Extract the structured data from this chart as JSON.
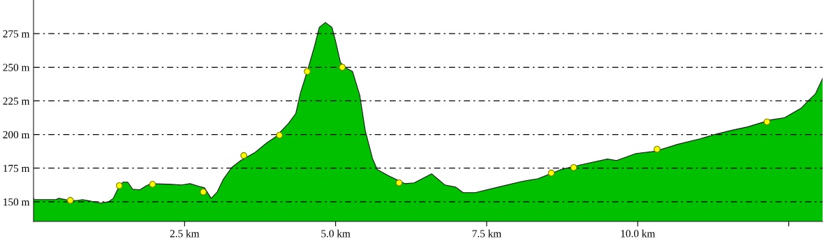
{
  "chart_data": {
    "type": "area",
    "xlim": [
      0,
      13.06
    ],
    "ylim": [
      135.4,
      300
    ],
    "xticks": [
      {
        "value": 2.5,
        "label": "2.5 km"
      },
      {
        "value": 5.0,
        "label": "5.0 km"
      },
      {
        "value": 7.5,
        "label": "7.5 km"
      },
      {
        "value": 10.0,
        "label": "10.0 km"
      },
      {
        "value": 12.5,
        "label": null
      }
    ],
    "yticks": [
      {
        "value": 150,
        "label": "150 m"
      },
      {
        "value": 175,
        "label": "175 m"
      },
      {
        "value": 200,
        "label": "200 m"
      },
      {
        "value": 225,
        "label": "225 m"
      },
      {
        "value": 250,
        "label": "250 m"
      },
      {
        "value": 275,
        "label": "275 m"
      }
    ],
    "grid": "y",
    "series": [
      {
        "color": "#00c000",
        "x": [
          0,
          0.01,
          0.37,
          0.42,
          0.6,
          0.72,
          0.81,
          0.95,
          1.1,
          1.24,
          1.32,
          1.41,
          1.48,
          1.56,
          1.64,
          1.76,
          1.87,
          1.94,
          2.28,
          2.45,
          2.59,
          2.74,
          2.83,
          2.94,
          3.04,
          3.14,
          3.28,
          3.43,
          3.66,
          3.86,
          4.01,
          4.22,
          4.34,
          4.42,
          4.53,
          4.65,
          4.73,
          4.83,
          4.94,
          5.0,
          5.08,
          5.17,
          5.28,
          5.4,
          5.49,
          5.61,
          5.69,
          5.88,
          6.15,
          6.3,
          6.59,
          6.81,
          6.99,
          7.11,
          7.31,
          7.69,
          8.08,
          8.35,
          8.73,
          9.12,
          9.5,
          9.65,
          9.97,
          10.28,
          10.66,
          11.04,
          11.27,
          11.55,
          11.82,
          12.2,
          12.43,
          12.71,
          12.82,
          12.94,
          13.06
        ],
        "values": [
          153.1,
          151.6,
          151.6,
          152.6,
          151.0,
          151.0,
          151.6,
          150.5,
          149.0,
          150.0,
          152.6,
          160.9,
          164.6,
          164.6,
          159.4,
          158.9,
          162.0,
          163.5,
          163.0,
          162.5,
          163.5,
          161.5,
          160.4,
          152.6,
          157.3,
          166.7,
          175.5,
          180.7,
          186.5,
          193.8,
          198.4,
          208.3,
          215.6,
          231.3,
          246.9,
          265.6,
          279.7,
          283.3,
          279.7,
          269.3,
          253.6,
          249.5,
          246.9,
          229.2,
          203.1,
          182.3,
          174.0,
          169.3,
          163.5,
          164.1,
          170.8,
          162.5,
          160.9,
          156.8,
          156.8,
          160.9,
          165.1,
          167.2,
          174.0,
          178.1,
          181.8,
          180.7,
          185.9,
          187.5,
          192.7,
          196.9,
          200.0,
          203.1,
          205.7,
          210.9,
          212.5,
          219.8,
          225.0,
          230.2,
          241.7
        ]
      },
      {
        "type": "scatter",
        "color": "#ffff00",
        "marker": "circle",
        "x": [
          0.61,
          1.42,
          1.97,
          2.81,
          3.48,
          4.07,
          4.53,
          5.11,
          6.05,
          8.57,
          8.94,
          10.32,
          12.14
        ],
        "values": [
          151.0,
          162.0,
          163.0,
          157.3,
          184.4,
          199.5,
          246.9,
          250.0,
          164.1,
          171.4,
          175.5,
          189.1,
          209.4
        ]
      }
    ]
  }
}
